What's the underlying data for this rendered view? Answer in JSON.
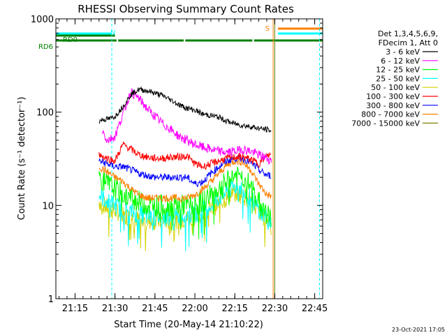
{
  "chart_data": {
    "type": "line",
    "title": "RHESSI Observing Summary Count Rates",
    "xlabel": "Start Time (20-May-14 21:10:22)",
    "ylabel": "Count Rate (s⁻¹ detector⁻¹)",
    "y_scale": "log",
    "ylim": [
      1,
      1000
    ],
    "y_ticks": [
      {
        "value": 1,
        "label": "1"
      },
      {
        "value": 10,
        "label": "10"
      },
      {
        "value": 100,
        "label": "100"
      },
      {
        "value": 1000,
        "label": "1000"
      }
    ],
    "x_range_minutes": [
      21.13,
      22.8
    ],
    "x_ticks": [
      {
        "value": 21.25,
        "label": "21:15"
      },
      {
        "value": 21.5,
        "label": "21:30"
      },
      {
        "value": 21.75,
        "label": "21:45"
      },
      {
        "value": 22.0,
        "label": "22:00"
      },
      {
        "value": 22.25,
        "label": "22:15"
      },
      {
        "value": 22.5,
        "label": "22:30"
      },
      {
        "value": 22.75,
        "label": "22:45"
      }
    ],
    "legend_title": [
      "Det 1,3,4,5,6,9,",
      "FDecim 1, Att 0"
    ],
    "legend_placement": "right",
    "series": [
      {
        "name": "3 - 6 keV",
        "color": "#000000",
        "x": [
          21.4,
          21.42,
          21.47,
          21.5,
          21.55,
          21.6,
          21.65,
          21.7,
          21.75,
          21.8,
          21.85,
          21.9,
          21.95,
          22.0,
          22.05,
          22.1,
          22.15,
          22.2,
          22.25,
          22.3,
          22.35,
          22.4,
          22.45,
          22.48
        ],
        "y": [
          80,
          83,
          85,
          90,
          115,
          155,
          175,
          170,
          160,
          150,
          135,
          120,
          110,
          105,
          95,
          92,
          88,
          80,
          75,
          72,
          70,
          67,
          65,
          63
        ]
      },
      {
        "name": "6 - 12 keV",
        "color": "#ff00ff",
        "x": [
          21.42,
          21.45,
          21.5,
          21.55,
          21.6,
          21.65,
          21.7,
          21.75,
          21.8,
          21.85,
          21.9,
          21.95,
          22.0,
          22.05,
          22.1,
          22.15,
          22.2,
          22.25,
          22.3,
          22.35,
          22.4,
          22.45,
          22.48
        ],
        "y": [
          65,
          50,
          55,
          95,
          165,
          140,
          110,
          90,
          75,
          65,
          55,
          50,
          45,
          42,
          40,
          38,
          37,
          38,
          40,
          38,
          35,
          32,
          30
        ]
      },
      {
        "name": "12 - 25 keV",
        "color": "#00ff00",
        "x": [
          21.4,
          21.45,
          21.5,
          21.55,
          21.6,
          21.65,
          21.7,
          21.75,
          21.8,
          21.85,
          21.9,
          21.95,
          22.0,
          22.05,
          22.1,
          22.15,
          22.2,
          22.25,
          22.3,
          22.35,
          22.4,
          22.45,
          22.48
        ],
        "y": [
          20,
          17,
          15,
          13,
          12,
          11,
          10,
          10,
          10,
          10,
          10,
          10,
          10,
          11,
          13,
          15,
          18,
          21,
          20,
          16,
          11,
          8,
          7
        ]
      },
      {
        "name": "25 - 50 keV",
        "color": "#00ffff",
        "x": [
          21.4,
          21.45,
          21.5,
          21.55,
          21.6,
          21.65,
          21.7,
          21.75,
          21.8,
          21.85,
          21.9,
          21.95,
          22.0,
          22.05,
          22.1,
          22.15,
          22.2,
          22.25,
          22.3,
          22.35,
          22.4,
          22.45,
          22.48
        ],
        "y": [
          13,
          11,
          10,
          9,
          8.5,
          8,
          7.5,
          7.5,
          7.5,
          7.5,
          7.5,
          8,
          8,
          9,
          10,
          12,
          14,
          16,
          15,
          12,
          9,
          7.5,
          7
        ]
      },
      {
        "name": "50 - 100 keV",
        "color": "#d4d400",
        "x": [
          21.4,
          21.45,
          21.5,
          21.55,
          21.6,
          21.65,
          21.7,
          21.75,
          21.8,
          21.85,
          21.9,
          21.95,
          22.0,
          22.05,
          22.1,
          22.15,
          22.2,
          22.25,
          22.3,
          22.35,
          22.4,
          22.45,
          22.48
        ],
        "y": [
          11,
          9.5,
          8.5,
          8,
          7.5,
          7,
          6.8,
          6.8,
          6.8,
          6.8,
          7,
          7.2,
          7.5,
          8,
          9,
          10.5,
          12,
          13.5,
          13,
          11,
          8.5,
          7,
          6.5
        ]
      },
      {
        "name": "100 - 300 keV",
        "color": "#ff0000",
        "x": [
          21.4,
          21.45,
          21.5,
          21.55,
          21.6,
          21.65,
          21.7,
          21.75,
          21.8,
          21.85,
          21.9,
          21.95,
          22.0,
          22.05,
          22.1,
          22.15,
          22.2,
          22.25,
          22.3,
          22.35,
          22.4,
          22.45,
          22.48
        ],
        "y": [
          35,
          32,
          30,
          45,
          40,
          35,
          33,
          32,
          32,
          33,
          33,
          34,
          28,
          26,
          28,
          30,
          32,
          33,
          33,
          31,
          28,
          34,
          35
        ]
      },
      {
        "name": "300 - 800 keV",
        "color": "#0000ff",
        "x": [
          21.4,
          21.45,
          21.5,
          21.55,
          21.6,
          21.65,
          21.7,
          21.75,
          21.8,
          21.85,
          21.9,
          21.95,
          22.0,
          22.05,
          22.1,
          22.15,
          22.2,
          22.25,
          22.3,
          22.35,
          22.4,
          22.45,
          22.48
        ],
        "y": [
          30,
          28,
          26,
          26,
          24,
          22,
          21,
          20,
          20,
          20,
          20,
          20,
          17,
          18,
          22,
          26,
          30,
          32,
          32,
          29,
          24,
          21,
          21
        ]
      },
      {
        "name": "800 - 7000 keV",
        "color": "#ff8000",
        "x": [
          21.4,
          21.45,
          21.5,
          21.55,
          21.6,
          21.65,
          21.7,
          21.75,
          21.8,
          21.85,
          21.9,
          21.95,
          22.0,
          22.05,
          22.1,
          22.15,
          22.2,
          22.25,
          22.3,
          22.35,
          22.4,
          22.45,
          22.48
        ],
        "y": [
          26,
          23,
          20,
          18,
          15,
          13,
          12,
          12,
          12,
          12,
          12,
          12,
          13,
          15,
          18,
          22,
          27,
          30,
          29,
          24,
          17,
          13,
          12.5
        ]
      },
      {
        "name": "7000 - 15000 keV",
        "color": "#808000",
        "x": [],
        "y": []
      }
    ],
    "state_bars": [
      {
        "label": "N",
        "color": "#00ffff",
        "segments": [
          [
            21.13,
            21.48
          ],
          [
            22.52,
            22.8
          ]
        ]
      },
      {
        "label": "S",
        "color": "#ff8000",
        "segments": [
          [
            22.52,
            22.8
          ]
        ]
      },
      {
        "label": "RD0",
        "color": "#008000",
        "segments": [
          [
            21.13,
            21.5
          ]
        ]
      },
      {
        "label": "RD6",
        "color": "#008000",
        "segments": [
          [
            21.13,
            21.51
          ],
          [
            21.52,
            21.93
          ],
          [
            21.94,
            22.36
          ],
          [
            22.37,
            22.8
          ]
        ]
      }
    ],
    "vertical_lines": [
      {
        "x": 21.13,
        "color": "#00ffff",
        "style": "solid"
      },
      {
        "x": 21.48,
        "color": "#00ffff",
        "style": "dashed"
      },
      {
        "x": 22.5,
        "color": "#00ffff",
        "style": "solid"
      },
      {
        "x": 22.49,
        "color": "#ff8000",
        "style": "solid"
      },
      {
        "x": 22.5,
        "color": "#808000",
        "style": "solid"
      },
      {
        "x": 22.78,
        "color": "#00ffff",
        "style": "dashed"
      }
    ]
  },
  "footer": {
    "timestamp": "23-Oct-2021 17:05"
  }
}
